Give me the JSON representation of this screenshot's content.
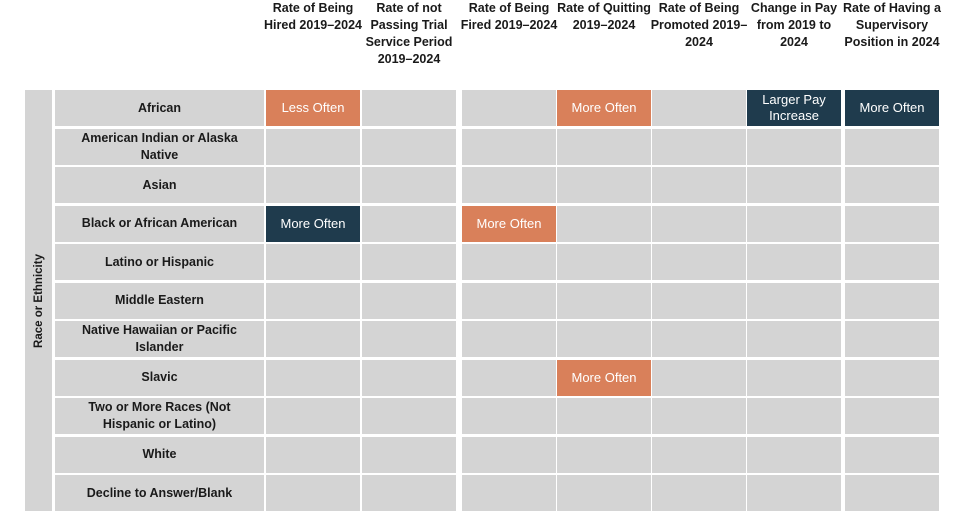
{
  "chart_data": {
    "type": "table",
    "row_axis_label": "Race or Ethnicity",
    "columns": [
      "Rate of Being Hired 2019–2024",
      "Rate of not Passing Trial Service Period 2019–2024",
      "Rate of Being Fired 2019–2024",
      "Rate of Quitting 2019–2024",
      "Rate of Being Promoted 2019–2024",
      "Change in Pay from 2019 to 2024",
      "Rate of Having a Supervisory Position in 2024"
    ],
    "rows": [
      "African",
      "American Indian or Alaska Native",
      "Asian",
      "Black or African American",
      "Latino or Hispanic",
      "Middle Eastern",
      "Native Hawaiian or Pacific Islander",
      "Slavic",
      "Two or More Races (Not Hispanic or Latino)",
      "White",
      "Decline to Answer/Blank"
    ],
    "cells": [
      [
        "Less Often",
        "",
        "",
        "More Often",
        "",
        "Larger Pay Increase",
        "More Often"
      ],
      [
        "",
        "",
        "",
        "",
        "",
        "",
        ""
      ],
      [
        "",
        "",
        "",
        "",
        "",
        "",
        ""
      ],
      [
        "More Often",
        "",
        "More Often",
        "",
        "",
        "",
        ""
      ],
      [
        "",
        "",
        "",
        "",
        "",
        "",
        ""
      ],
      [
        "",
        "",
        "",
        "",
        "",
        "",
        ""
      ],
      [
        "",
        "",
        "",
        "",
        "",
        "",
        ""
      ],
      [
        "",
        "",
        "",
        "More Often",
        "",
        "",
        ""
      ],
      [
        "",
        "",
        "",
        "",
        "",
        "",
        ""
      ],
      [
        "",
        "",
        "",
        "",
        "",
        "",
        ""
      ],
      [
        "",
        "",
        "",
        "",
        "",
        "",
        ""
      ]
    ],
    "cell_colors": [
      [
        "orange",
        "",
        "",
        "orange",
        "",
        "dark",
        "dark"
      ],
      [
        "",
        "",
        "",
        "",
        "",
        "",
        ""
      ],
      [
        "",
        "",
        "",
        "",
        "",
        "",
        ""
      ],
      [
        "dark",
        "",
        "orange",
        "",
        "",
        "",
        ""
      ],
      [
        "",
        "",
        "",
        "",
        "",
        "",
        ""
      ],
      [
        "",
        "",
        "",
        "",
        "",
        "",
        ""
      ],
      [
        "",
        "",
        "",
        "",
        "",
        "",
        ""
      ],
      [
        "",
        "",
        "",
        "orange",
        "",
        "",
        ""
      ],
      [
        "",
        "",
        "",
        "",
        "",
        "",
        ""
      ],
      [
        "",
        "",
        "",
        "",
        "",
        "",
        ""
      ],
      [
        "",
        "",
        "",
        "",
        "",
        "",
        ""
      ]
    ],
    "colors": {
      "empty": "#d4d4d4",
      "orange": "#d9805a",
      "dark": "#1f3b4d"
    }
  }
}
